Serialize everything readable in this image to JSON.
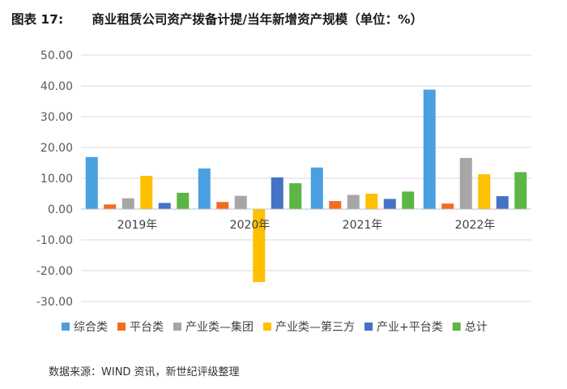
{
  "header": {
    "figure_label": "图表 17:",
    "title": "商业租赁公司资产拨备计提/当年新增资产规模（单位：%）"
  },
  "chart_data": {
    "type": "bar",
    "categories": [
      "2019年",
      "2020年",
      "2021年",
      "2022年"
    ],
    "series": [
      {
        "name": "综合类",
        "color": "#4a9fe0",
        "values": [
          16.9,
          13.2,
          13.5,
          38.8
        ]
      },
      {
        "name": "平台类",
        "color": "#f36c1e",
        "values": [
          1.5,
          2.3,
          2.6,
          1.8
        ]
      },
      {
        "name": "产业类—集团",
        "color": "#a6a6a6",
        "values": [
          3.5,
          4.3,
          4.6,
          16.6
        ]
      },
      {
        "name": "产业类—第三方",
        "color": "#ffc000",
        "values": [
          10.8,
          -23.7,
          5.0,
          11.3
        ]
      },
      {
        "name": "产业+平台类",
        "color": "#4472c4",
        "values": [
          2.0,
          10.3,
          3.3,
          4.2
        ]
      },
      {
        "name": "总计",
        "color": "#5cb646",
        "values": [
          5.3,
          8.4,
          5.7,
          12.0
        ]
      }
    ],
    "yticks": [
      "50.00",
      "40.00",
      "30.00",
      "20.00",
      "10.00",
      "0.00",
      "-10.00",
      "-20.00",
      "-30.00"
    ],
    "ylim": [
      -30,
      50
    ],
    "grid": true,
    "legend_position": "bottom"
  },
  "footer": {
    "source": "数据来源：WIND 资讯，新世纪评级整理"
  }
}
